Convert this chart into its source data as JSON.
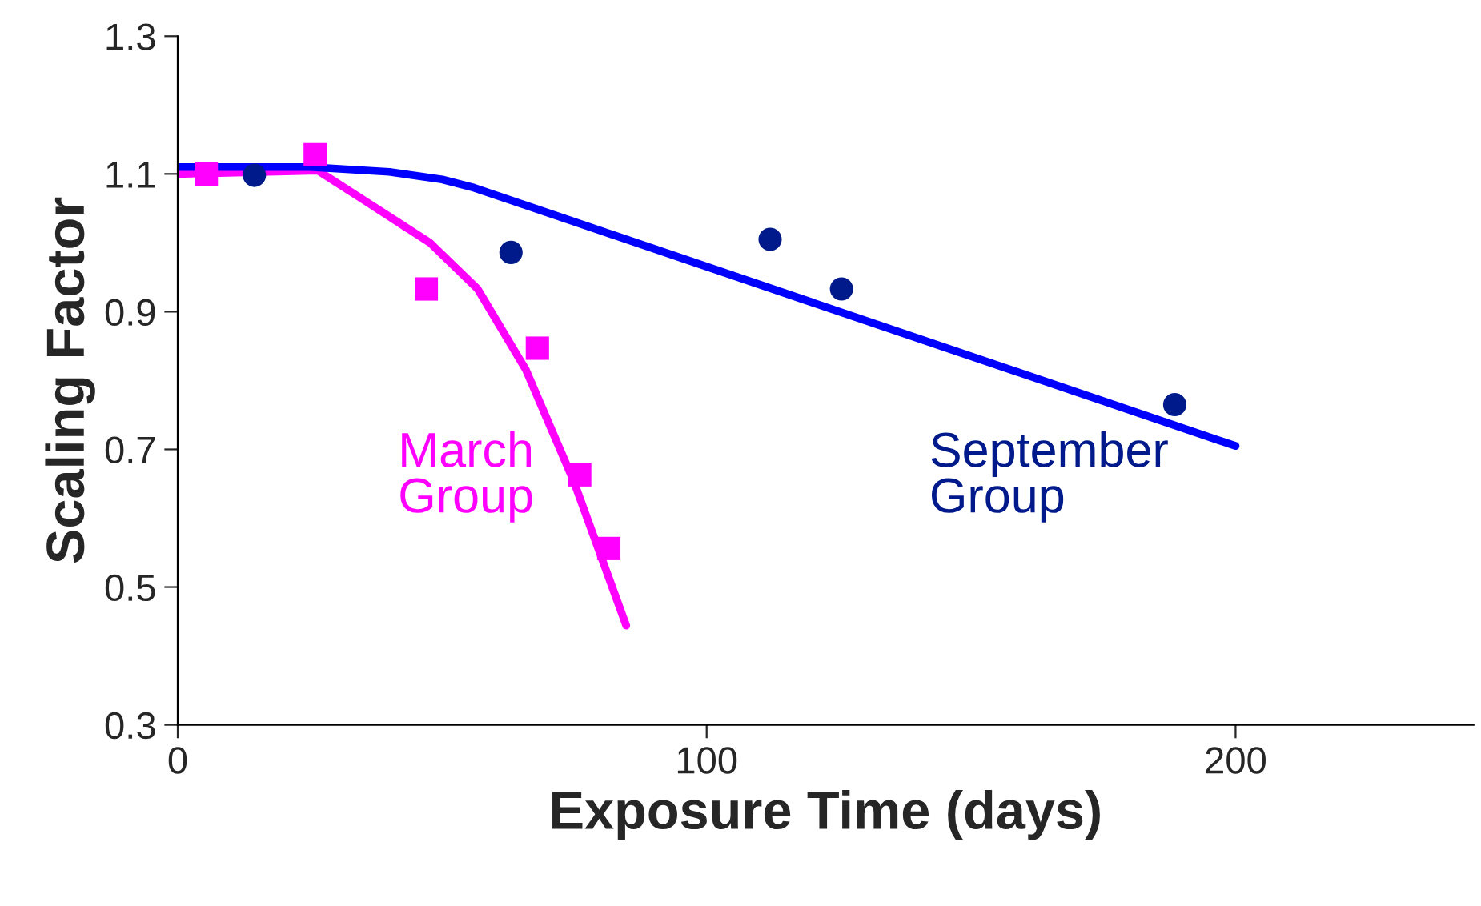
{
  "chart_data": {
    "type": "scatter",
    "xlabel": "Exposure Time (days)",
    "ylabel": "Scaling Factor",
    "xlim": [
      0,
      245
    ],
    "xticks": [
      0,
      100,
      200
    ],
    "ylim": [
      0.3,
      1.3
    ],
    "yticks": [
      0.3,
      0.5,
      0.7,
      0.9,
      1.1,
      1.3
    ],
    "grid": false,
    "legend": false,
    "series": [
      {
        "name": "March Group",
        "color": "#ff00ff",
        "marker": "square",
        "x": [
          5.4,
          26,
          47,
          68,
          76,
          81.5
        ],
        "values": [
          1.1,
          1.128,
          0.933,
          0.847,
          0.663,
          0.556
        ]
      },
      {
        "name": "September Group",
        "color": "#001a8c",
        "marker": "circle",
        "x": [
          14.5,
          63,
          112,
          125.5,
          188.5
        ],
        "values": [
          1.098,
          0.986,
          1.005,
          0.933,
          0.765
        ]
      },
      {
        "type": "line",
        "color": "#ff00ff",
        "line_style": "solid",
        "marker": "none",
        "x": [
          0,
          26.5,
          35.6,
          47.7,
          56.7,
          65.8,
          74.9,
          84.8
        ],
        "values": [
          1.1,
          1.105,
          1.06,
          1.0,
          0.933,
          0.816,
          0.653,
          0.444
        ]
      },
      {
        "type": "line",
        "color": "#0000ff",
        "line_style": "solid",
        "marker": "none",
        "x": [
          0,
          25,
          40,
          50,
          56,
          200
        ],
        "values": [
          1.11,
          1.11,
          1.103,
          1.092,
          1.08,
          0.705
        ]
      }
    ]
  }
}
